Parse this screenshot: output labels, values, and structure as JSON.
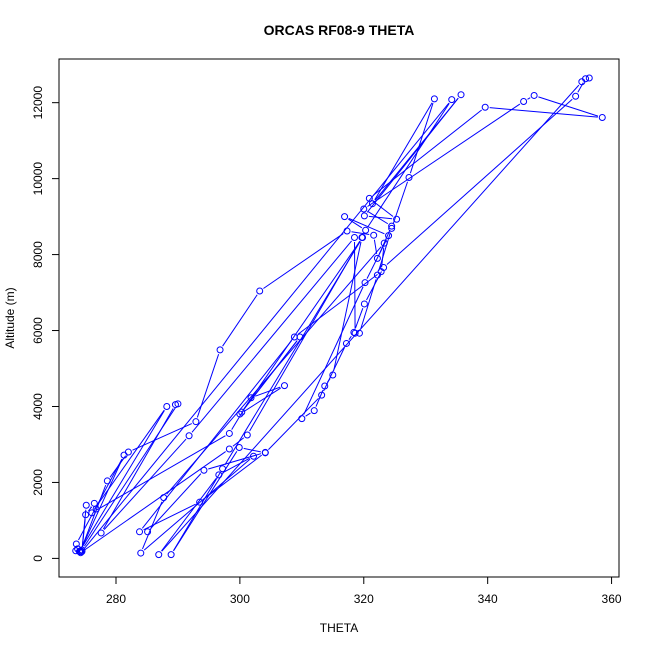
{
  "chart_data": {
    "type": "line",
    "title": "ORCAS RF08-9 THETA",
    "xlabel": "THETA",
    "ylabel": "Altitude (m)",
    "xlim": [
      270.8,
      361.2
    ],
    "ylim": [
      -490,
      13150
    ],
    "x_ticks": [
      280,
      300,
      320,
      340,
      360
    ],
    "y_ticks": [
      0,
      2000,
      4000,
      6000,
      8000,
      10000,
      12000
    ],
    "grid": false,
    "legend": "none",
    "series_color": "#0000ff",
    "marker": "open-circle",
    "series": [
      {
        "points": [
          [
            273.5,
            200
          ],
          [
            273.8,
            250
          ],
          [
            274.2,
            180
          ],
          [
            281.3,
            2720
          ],
          [
            273.6,
            380
          ],
          [
            274.3,
            150
          ],
          [
            298.3,
            2880
          ],
          [
            301.2,
            3250
          ],
          [
            319.7,
            8450
          ],
          [
            315.0,
            4830
          ],
          [
            313.7,
            4540
          ],
          [
            312.0,
            3890
          ],
          [
            310.0,
            3680
          ],
          [
            320.2,
            7260
          ],
          [
            324.0,
            8500
          ],
          [
            316.9,
            9000
          ],
          [
            320.3,
            8640
          ],
          [
            334.2,
            12080
          ],
          [
            274.5,
            180
          ],
          [
            275.1,
            1150
          ],
          [
            276.5,
            1450
          ],
          [
            276.8,
            1300
          ],
          [
            275.2,
            1400
          ],
          [
            274.5,
            220
          ],
          [
            290.0,
            4070
          ],
          [
            289.6,
            4050
          ],
          [
            277.6,
            670
          ],
          [
            291.8,
            3230
          ],
          [
            318.5,
            8450
          ],
          [
            318.6,
            5930
          ],
          [
            319.3,
            5930
          ],
          [
            322.2,
            7460
          ],
          [
            324.5,
            8690
          ],
          [
            327.3,
            10030
          ],
          [
            331.4,
            12100
          ],
          [
            321.4,
            9340
          ],
          [
            335.7,
            12210
          ],
          [
            320.1,
            9020
          ],
          [
            325.3,
            8930
          ],
          [
            320.9,
            9480
          ],
          [
            339.6,
            11880
          ],
          [
            358.5,
            11610
          ],
          [
            347.5,
            12190
          ],
          [
            345.8,
            12030
          ],
          [
            320.0,
            9200
          ],
          [
            324.5,
            8750
          ],
          [
            322.2,
            7900
          ],
          [
            321.6,
            8510
          ],
          [
            317.3,
            8620
          ],
          [
            303.2,
            7040
          ],
          [
            296.8,
            5490
          ],
          [
            292.9,
            3600
          ],
          [
            282.0,
            2800
          ],
          [
            278.6,
            2040
          ],
          [
            274.3,
            200
          ]
        ]
      },
      {
        "points": [
          [
            274.1,
            180
          ],
          [
            288.2,
            4000
          ],
          [
            276.1,
            1200
          ],
          [
            298.3,
            3290
          ],
          [
            301.8,
            4230
          ],
          [
            307.2,
            4550
          ],
          [
            300.0,
            3800
          ],
          [
            309.7,
            5830
          ],
          [
            300.3,
            3850
          ],
          [
            319.8,
            8450
          ],
          [
            297.2,
            2360
          ],
          [
            288.9,
            100
          ],
          [
            299.9,
            2920
          ],
          [
            304.1,
            2780
          ],
          [
            313.2,
            4300
          ],
          [
            317.2,
            5660
          ],
          [
            318.4,
            5950
          ],
          [
            320.1,
            6700
          ],
          [
            323.2,
            7660
          ],
          [
            354.2,
            12170
          ],
          [
            355.8,
            12630
          ],
          [
            356.4,
            12650
          ],
          [
            355.2,
            12550
          ],
          [
            286.9,
            100
          ],
          [
            296.6,
            2200
          ],
          [
            302.2,
            2690
          ],
          [
            284.0,
            140
          ],
          [
            287.7,
            1600
          ],
          [
            323.3,
            8300
          ],
          [
            322.8,
            7550
          ],
          [
            308.8,
            5830
          ],
          [
            283.8,
            700
          ],
          [
            293.5,
            1480
          ],
          [
            304.1,
            2790
          ],
          [
            294.2,
            2320
          ],
          [
            285.1,
            700
          ]
        ]
      }
    ]
  }
}
